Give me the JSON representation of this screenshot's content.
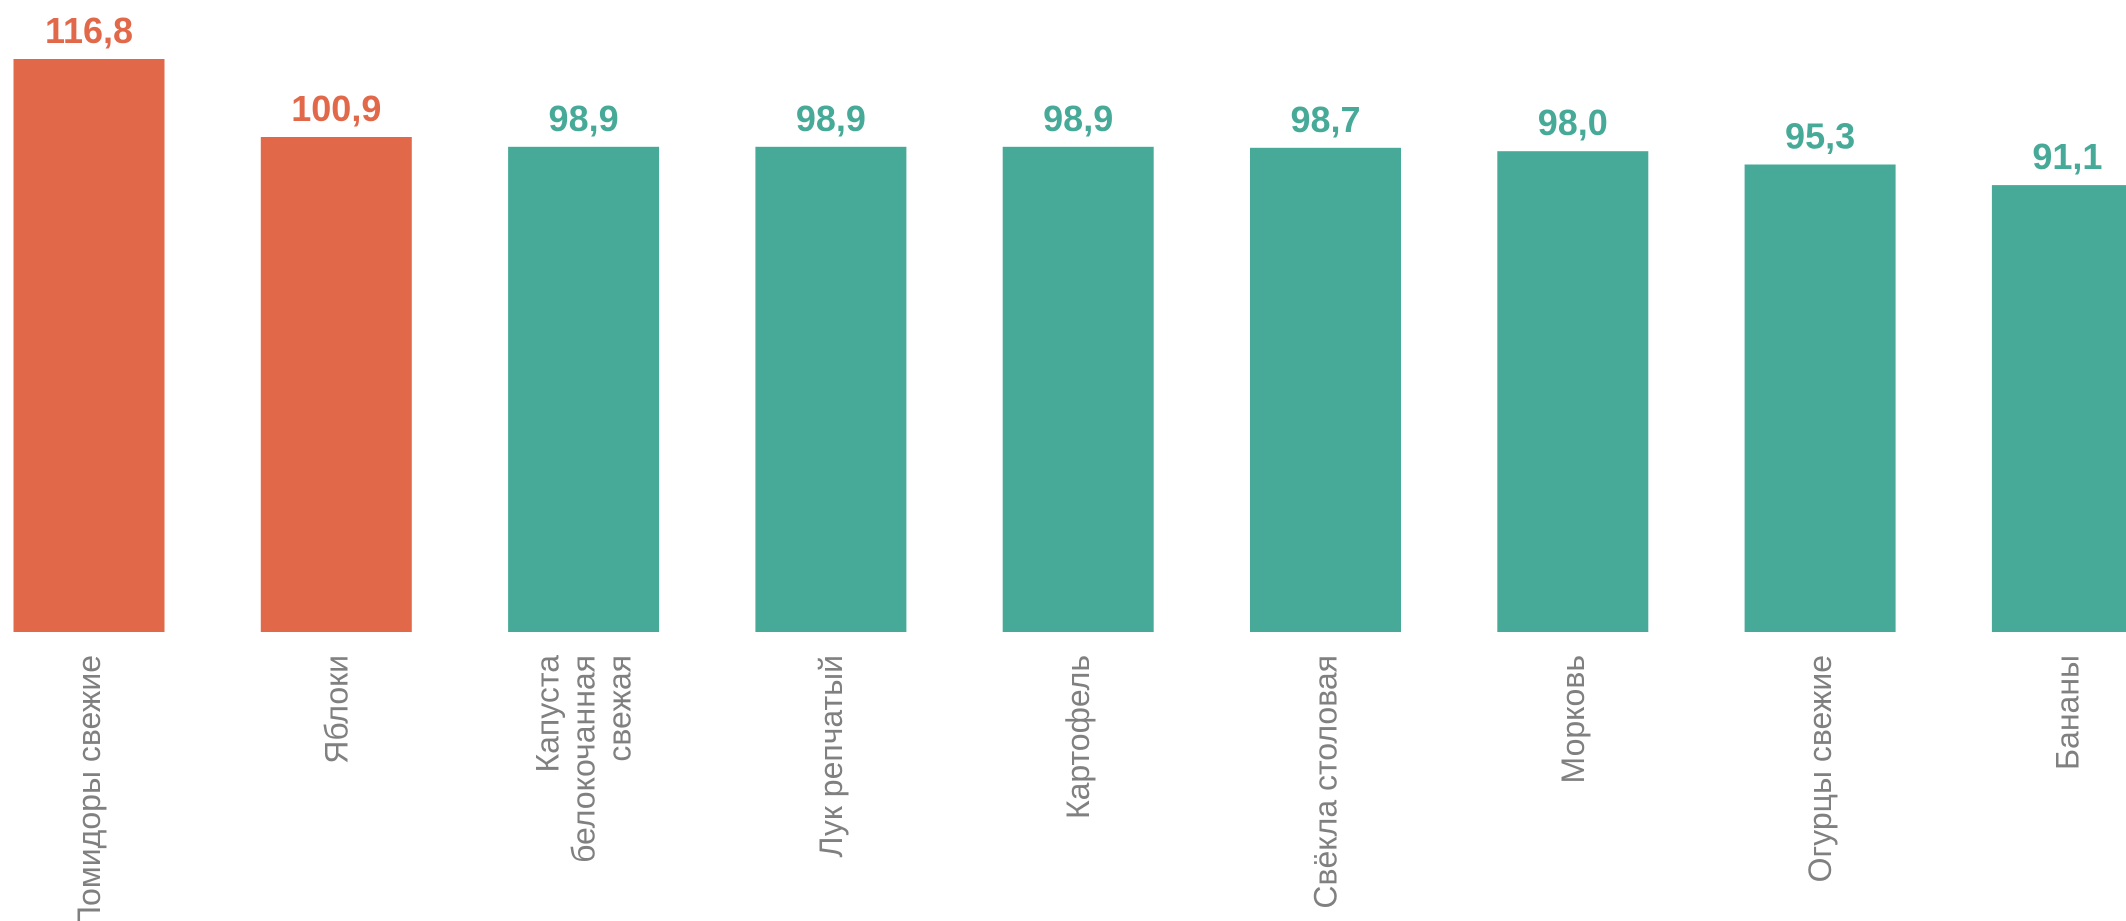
{
  "colors": {
    "highlight": "#E2684A",
    "normal": "#47AA98",
    "category_text": "#808080"
  },
  "chart_data": {
    "type": "bar",
    "categories": [
      [
        "Помидоры свежие"
      ],
      [
        "Яблоки"
      ],
      [
        "Капуста",
        "белокочанная",
        "свежая"
      ],
      [
        "Лук репчатый"
      ],
      [
        "Картофель"
      ],
      [
        "Свёкла столовая"
      ],
      [
        "Морковь"
      ],
      [
        "Огурцы свежие"
      ],
      [
        "Бананы"
      ]
    ],
    "values": [
      116.8,
      100.9,
      98.9,
      98.9,
      98.9,
      98.7,
      98.0,
      95.3,
      91.1
    ],
    "value_labels": [
      "116,8",
      "100,9",
      "98,9",
      "98,9",
      "98,9",
      "98,7",
      "98,0",
      "95,3",
      "91,1"
    ],
    "highlight": [
      true,
      true,
      false,
      false,
      false,
      false,
      false,
      false,
      false
    ],
    "ylim": [
      0,
      116.8
    ],
    "title": "",
    "xlabel": "",
    "ylabel": "",
    "grid": false,
    "legend": "none"
  }
}
